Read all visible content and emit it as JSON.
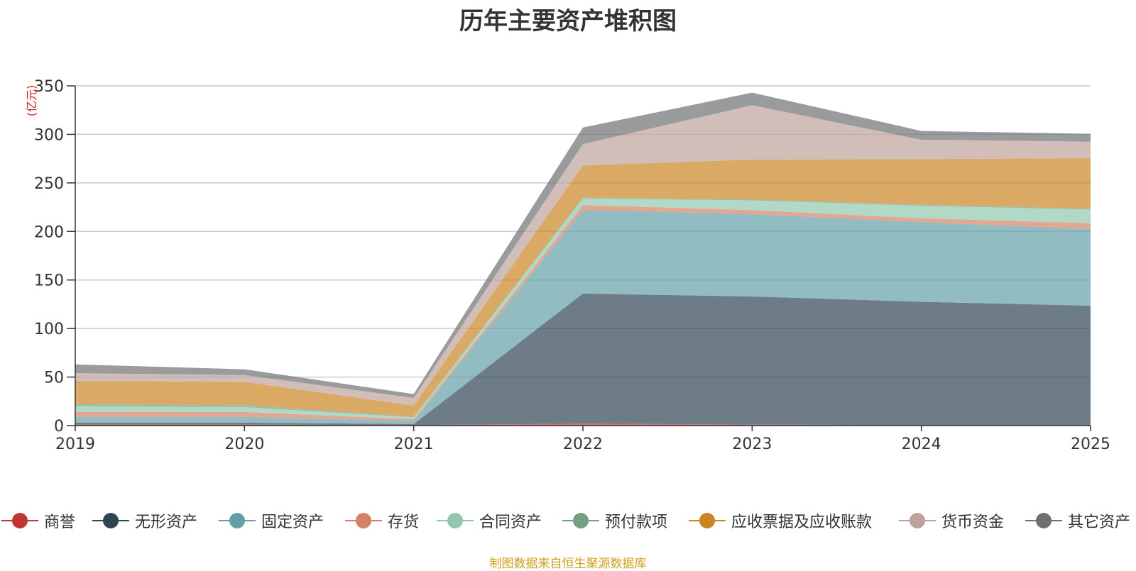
{
  "chart_data": {
    "type": "area",
    "stacked": true,
    "title": "历年主要资产堆积图",
    "ylabel": "(亿元)",
    "x": [
      "2019",
      "2020",
      "2021",
      "2022",
      "2023",
      "2024",
      "2025"
    ],
    "ylim": [
      0,
      350
    ],
    "yticks": [
      "0",
      "50",
      "100",
      "150",
      "200",
      "250",
      "300",
      "350"
    ],
    "grid": true,
    "legend_position": "bottom",
    "series": [
      {
        "name": "商誉",
        "color": "#c23531",
        "values": [
          1,
          1,
          0.5,
          2,
          1,
          0.5,
          0.5
        ]
      },
      {
        "name": "无形资产",
        "color": "#2f4554",
        "values": [
          2,
          2,
          1,
          134,
          132,
          127,
          123
        ]
      },
      {
        "name": "固定资产",
        "color": "#61a0a8",
        "values": [
          6,
          6,
          3,
          86,
          85,
          82,
          79
        ]
      },
      {
        "name": "存货",
        "color": "#d48265",
        "values": [
          5,
          5,
          2,
          5,
          4,
          4,
          6
        ]
      },
      {
        "name": "合同资产",
        "color": "#91c7ae",
        "values": [
          6,
          5,
          2,
          7,
          10,
          13,
          14
        ]
      },
      {
        "name": "预付款项",
        "color": "#749f83",
        "values": [
          2,
          2,
          1,
          1,
          1,
          1,
          1
        ]
      },
      {
        "name": "应收票据及应收账款",
        "color": "#ca8622",
        "values": [
          24,
          24,
          11,
          33,
          41,
          47,
          52
        ]
      },
      {
        "name": "货币资金",
        "color": "#bda29a",
        "values": [
          8,
          7,
          8,
          22,
          56,
          20,
          17
        ]
      },
      {
        "name": "其它资产",
        "color": "#6e7074",
        "values": [
          9,
          6,
          4,
          17,
          13,
          9,
          8
        ]
      }
    ]
  },
  "footer": {
    "source": "制图数据来自恒生聚源数据库"
  }
}
